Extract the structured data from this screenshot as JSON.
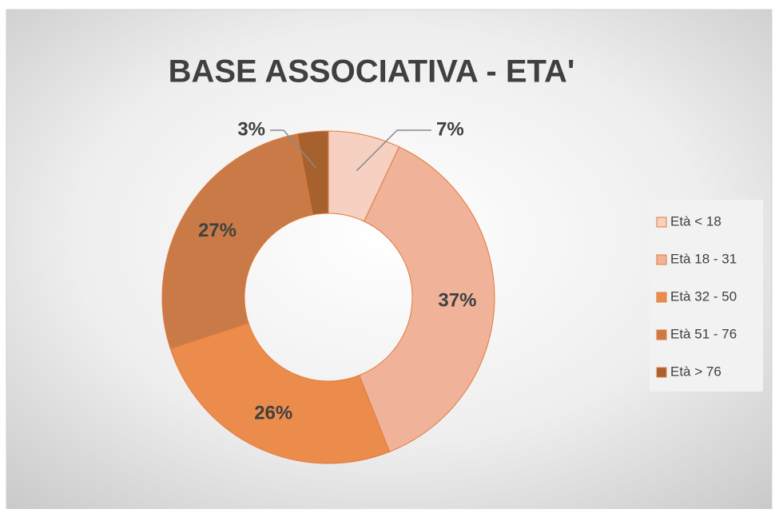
{
  "chart_data": {
    "type": "donut",
    "title": "BASE ASSOCIATIVA - ETA'",
    "categories": [
      "Età < 18",
      "Età 18 - 31",
      "Età 32 - 50",
      "Età 51 - 76",
      "Età > 76"
    ],
    "values": [
      7,
      37,
      26,
      27,
      3
    ],
    "value_labels": [
      "7%",
      "37%",
      "26%",
      "27%",
      "3%"
    ],
    "colors": [
      "#f6d0c0",
      "#f0b39a",
      "#ec8c4c",
      "#c97a47",
      "#a6612f"
    ],
    "legend": "right"
  }
}
